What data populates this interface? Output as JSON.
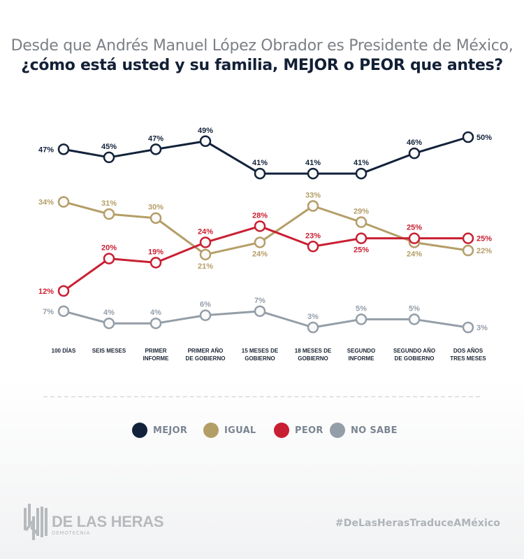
{
  "title": {
    "regular": "Desde que Andrés Manuel López Obrador es Presidente de México, ",
    "bold": "¿cómo está usted y su familia, MEJOR o PEOR que antes?"
  },
  "chart_data": {
    "type": "line",
    "title": "Desde que Andrés Manuel López Obrador es Presidente de México, ¿cómo está usted y su familia, MEJOR o PEOR que antes?",
    "xlabel": "",
    "ylabel": "",
    "ylim": [
      0,
      55
    ],
    "grid": false,
    "legend_position": "bottom",
    "categories": [
      [
        "100 DÍAS"
      ],
      [
        "SEIS MESES"
      ],
      [
        "PRIMER",
        "INFORME"
      ],
      [
        "PRIMER AÑO",
        "DE GOBIERNO"
      ],
      [
        "15 MESES DE",
        "GOBIERNO"
      ],
      [
        "18 MESES DE",
        "GOBIERNO"
      ],
      [
        "SEGUNDO",
        "INFORME"
      ],
      [
        "SEGUNDO AÑO",
        "DE GOBIERNO"
      ],
      [
        "DOS AÑOS",
        "TRES MESES"
      ]
    ],
    "series": [
      {
        "name": "MEJOR",
        "color": "#12223a",
        "values": [
          47,
          45,
          47,
          49,
          41,
          41,
          41,
          46,
          50
        ]
      },
      {
        "name": "IGUAL",
        "color": "#b49e67",
        "values": [
          34,
          31,
          30,
          21,
          24,
          33,
          29,
          24,
          22
        ]
      },
      {
        "name": "PEOR",
        "color": "#c91f32",
        "values": [
          12,
          20,
          19,
          24,
          28,
          23,
          25,
          25,
          25
        ]
      },
      {
        "name": "NO SABE",
        "color": "#949ea8",
        "values": [
          7,
          4,
          4,
          6,
          7,
          3,
          5,
          5,
          3
        ]
      }
    ]
  },
  "legend": [
    {
      "label": "MEJOR",
      "color": "#12223a"
    },
    {
      "label": "IGUAL",
      "color": "#b49e67"
    },
    {
      "label": "PEOR",
      "color": "#c91f32"
    },
    {
      "label": "NO SABE",
      "color": "#949ea8"
    }
  ],
  "footer": {
    "logo_name": "DE LAS HERAS",
    "logo_sub": "DEMOTECNIA",
    "hashtag": "#DeLasHerasTraduceAMéxico"
  }
}
